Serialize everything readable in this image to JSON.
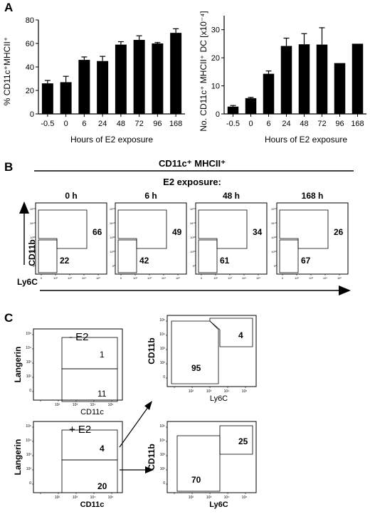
{
  "panel_labels": {
    "a": "A",
    "b": "B",
    "c": "C"
  },
  "chart_data": [
    {
      "type": "bar",
      "categories": [
        "-0.5",
        "0",
        "6",
        "24",
        "48",
        "72",
        "96",
        "168"
      ],
      "values": [
        26,
        27,
        46,
        45,
        59,
        63,
        60,
        69
      ],
      "errors": [
        2.5,
        5,
        2.5,
        4,
        2.5,
        3.5,
        0.8,
        3.5
      ],
      "xlabel": "Hours of E2 exposure",
      "ylabel": "% CD11c⁺MHCII⁺",
      "ylim": [
        0,
        80
      ],
      "yticks": [
        0,
        20,
        40,
        60,
        80
      ],
      "color": "#000000"
    },
    {
      "type": "bar",
      "categories": [
        "-0.5",
        "0",
        "6",
        "24",
        "48",
        "72",
        "96",
        "168"
      ],
      "values": [
        2.6,
        5.6,
        14.3,
        24.2,
        24.8,
        24.7,
        18.1,
        25
      ],
      "errors": [
        0.4,
        0.3,
        1,
        2.8,
        3.8,
        6,
        0,
        0
      ],
      "xlabel": "Hours of E2 exposure",
      "ylabel": "No. CD11c⁺ MHCII⁺ DC [x10⁻⁴]",
      "ylim": [
        0,
        35
      ],
      "yticks": [
        0,
        10,
        20,
        30
      ],
      "color": "#000000"
    }
  ],
  "panel_b": {
    "header": "CD11c⁺ MHCII⁺",
    "subheader": "E2 exposure:",
    "y_axis_label": "CD11b",
    "x_axis_label": "Ly6C",
    "plots": [
      {
        "time": "0 h",
        "upper": "66",
        "lower": "22"
      },
      {
        "time": "6 h",
        "upper": "49",
        "lower": "42"
      },
      {
        "time": "48 h",
        "upper": "34",
        "lower": "61"
      },
      {
        "time": "168 h",
        "upper": "26",
        "lower": "67"
      }
    ]
  },
  "panel_c": {
    "minus_label": "- E2",
    "plus_label": "+ E2",
    "langerin": "Langerin",
    "cd11c": "CD11c",
    "cd11b": "CD11b",
    "ly6c": "Ly6C",
    "minus_upper": "1",
    "minus_lower": "11",
    "plus_upper": "4",
    "plus_lower": "20",
    "right_top_upper": "4",
    "right_top_lower": "95",
    "right_bottom_upper": "25",
    "right_bottom_lower": "70",
    "tick_labels": [
      "10⁶",
      "10⁴",
      "10³",
      "10²",
      "0",
      "10²",
      "10³",
      "10⁴",
      "10⁵"
    ]
  }
}
